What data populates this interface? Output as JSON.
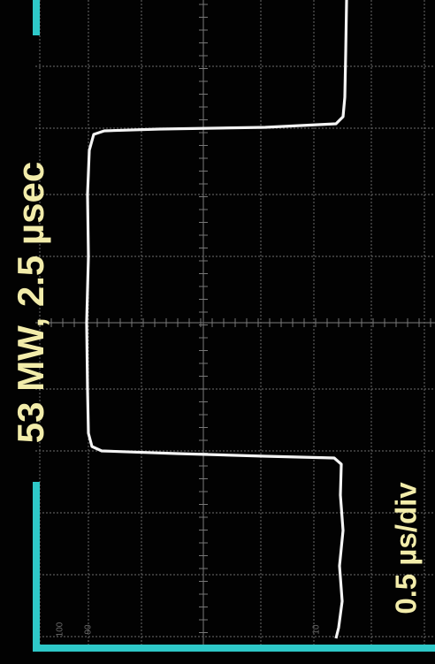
{
  "caption": "53 MW, 2.5 µsec",
  "timebase": "0.5 µs/div",
  "graticule_labels": [
    "100",
    "90",
    "10"
  ]
}
